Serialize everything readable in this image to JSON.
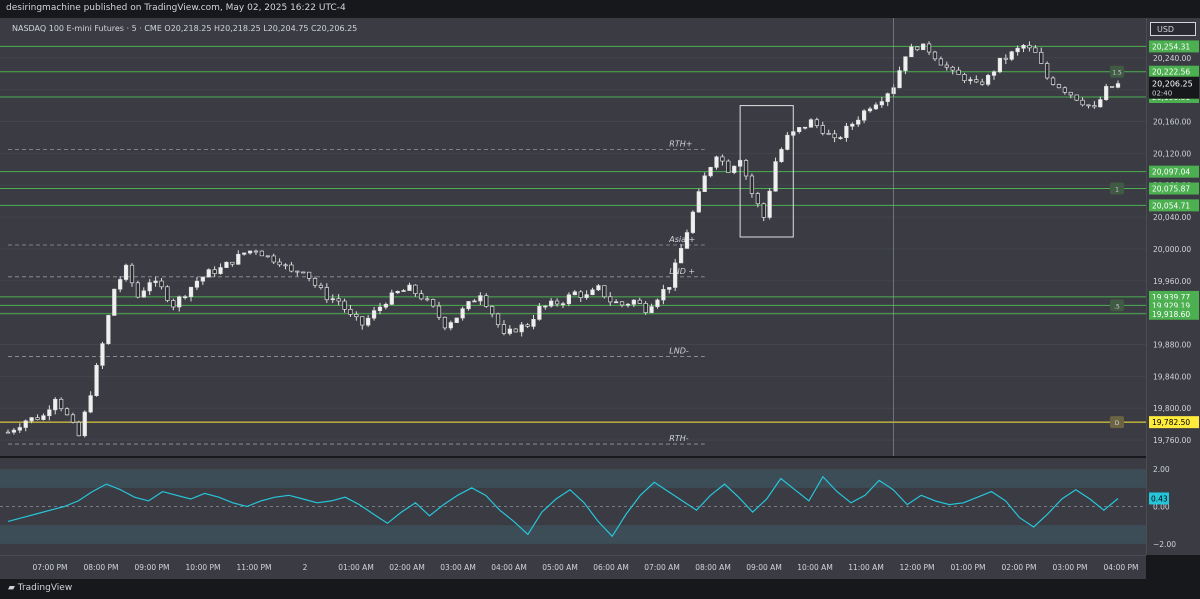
{
  "header": {
    "published_text": "desiringmachine published on TradingView.com, May 02, 2025 16:22 UTC-4"
  },
  "legend": {
    "text": "NASDAQ 100 E-mini Futures · 5 · CME  O20,218.25  H20,218.25  L20,204.75  C20,206.25"
  },
  "currency_button": "USD",
  "footer": {
    "logo_text": "TradingView"
  },
  "colors": {
    "bg": "#3a3b43",
    "green_line": "#4caf50",
    "yellow_line": "#ffeb3b",
    "rsi": "#26c6da",
    "candle": "#e0e0e0"
  },
  "chart_data": {
    "type": "candlestick",
    "instrument": "NASDAQ 100 E-mini Futures",
    "interval": "5",
    "exchange": "CME",
    "ohlc_last": {
      "O": 20218.25,
      "H": 20218.25,
      "L": 20204.75,
      "C": 20206.25
    },
    "ylim": [
      19740,
      20290
    ],
    "price_ticks": [
      20240,
      20200,
      20160,
      20120,
      20080,
      20040,
      20000,
      19960,
      19920,
      19880,
      19840,
      19800,
      19760
    ],
    "price_tick_labels": [
      "20,240.00",
      "20,200.00",
      "20,160.00",
      "20,120.00",
      "20,080.00",
      "20,040.00",
      "20,000.00",
      "19,960.00",
      "19,920.00",
      "19,880.00",
      "19,840.00",
      "19,800.00",
      "19,760.00"
    ],
    "time_labels": [
      "07:00 PM",
      "08:00 PM",
      "09:00 PM",
      "10:00 PM",
      "11:00 PM",
      "2",
      "01:00 AM",
      "02:00 AM",
      "03:00 AM",
      "04:00 AM",
      "05:00 AM",
      "06:00 AM",
      "07:00 AM",
      "08:00 AM",
      "09:00 AM",
      "10:00 AM",
      "11:00 AM",
      "12:00 PM",
      "01:00 PM",
      "02:00 PM",
      "03:00 PM",
      "04:00 PM"
    ],
    "close_path": [
      [
        0,
        19770
      ],
      [
        3,
        19785
      ],
      [
        6,
        19790
      ],
      [
        8,
        19815
      ],
      [
        10,
        19790
      ],
      [
        12,
        19765
      ],
      [
        14,
        19820
      ],
      [
        16,
        19880
      ],
      [
        18,
        19950
      ],
      [
        20,
        19975
      ],
      [
        22,
        19940
      ],
      [
        24,
        19960
      ],
      [
        26,
        19950
      ],
      [
        28,
        19930
      ],
      [
        30,
        19945
      ],
      [
        32,
        19960
      ],
      [
        34,
        19970
      ],
      [
        36,
        19975
      ],
      [
        38,
        19985
      ],
      [
        40,
        19995
      ],
      [
        42,
        20000
      ],
      [
        44,
        19990
      ],
      [
        46,
        19985
      ],
      [
        48,
        19970
      ],
      [
        50,
        19975
      ],
      [
        52,
        19955
      ],
      [
        54,
        19940
      ],
      [
        56,
        19935
      ],
      [
        58,
        19915
      ],
      [
        60,
        19905
      ],
      [
        62,
        19920
      ],
      [
        64,
        19935
      ],
      [
        66,
        19945
      ],
      [
        68,
        19950
      ],
      [
        70,
        19940
      ],
      [
        72,
        19925
      ],
      [
        74,
        19905
      ],
      [
        76,
        19915
      ],
      [
        78,
        19930
      ],
      [
        80,
        19945
      ],
      [
        82,
        19920
      ],
      [
        84,
        19890
      ],
      [
        86,
        19900
      ],
      [
        88,
        19905
      ],
      [
        90,
        19925
      ],
      [
        92,
        19930
      ],
      [
        94,
        19935
      ],
      [
        96,
        19945
      ],
      [
        98,
        19940
      ],
      [
        100,
        19950
      ],
      [
        102,
        19935
      ],
      [
        104,
        19930
      ],
      [
        106,
        19935
      ],
      [
        108,
        19925
      ],
      [
        110,
        19940
      ],
      [
        112,
        19955
      ],
      [
        114,
        20000
      ],
      [
        116,
        20045
      ],
      [
        118,
        20090
      ],
      [
        120,
        20120
      ],
      [
        122,
        20100
      ],
      [
        124,
        20115
      ],
      [
        126,
        20070
      ],
      [
        128,
        20040
      ],
      [
        130,
        20110
      ],
      [
        132,
        20140
      ],
      [
        134,
        20150
      ],
      [
        136,
        20160
      ],
      [
        138,
        20150
      ],
      [
        140,
        20135
      ],
      [
        142,
        20150
      ],
      [
        144,
        20165
      ],
      [
        146,
        20180
      ],
      [
        148,
        20190
      ],
      [
        150,
        20205
      ],
      [
        152,
        20245
      ],
      [
        154,
        20255
      ],
      [
        156,
        20250
      ],
      [
        158,
        20235
      ],
      [
        160,
        20220
      ],
      [
        162,
        20215
      ],
      [
        164,
        20205
      ],
      [
        166,
        20215
      ],
      [
        168,
        20235
      ],
      [
        170,
        20245
      ],
      [
        172,
        20255
      ],
      [
        174,
        20245
      ],
      [
        176,
        20215
      ],
      [
        178,
        20205
      ],
      [
        180,
        20195
      ],
      [
        182,
        20185
      ],
      [
        184,
        20175
      ],
      [
        186,
        20200
      ],
      [
        188,
        20206.25
      ]
    ],
    "n_bars": 188,
    "horizontal_levels": [
      {
        "price": 20254.31,
        "label": "20,254.31",
        "color": "#4caf50"
      },
      {
        "price": 20222.56,
        "label": "20,222.56",
        "color": "#4caf50",
        "tag": "1.5"
      },
      {
        "price": 20190.81,
        "label": "20,190.81",
        "color": "#4caf50"
      },
      {
        "price": 20097.04,
        "label": "20,097.04",
        "color": "#4caf50"
      },
      {
        "price": 20075.87,
        "label": "20,075.87",
        "color": "#4caf50",
        "tag": "1"
      },
      {
        "price": 20054.71,
        "label": "20,054.71",
        "color": "#4caf50"
      },
      {
        "price": 19939.77,
        "label": "19,939.77",
        "color": "#4caf50"
      },
      {
        "price": 19929.19,
        "label": "19,929.19",
        "color": "#4caf50",
        "tag": ".5"
      },
      {
        "price": 19918.6,
        "label": "19,918.60",
        "color": "#4caf50"
      },
      {
        "price": 19782.5,
        "label": "19,782.50",
        "color": "#ffeb3b",
        "tag": "D"
      }
    ],
    "last_price": {
      "value": "20,206.25",
      "countdown": "02:40"
    },
    "session_levels": [
      {
        "name": "RTH+",
        "price": 20125
      },
      {
        "name": "Asia +",
        "price": 20005
      },
      {
        "name": "LND +",
        "price": 19965
      },
      {
        "name": "LND-",
        "price": 19865
      },
      {
        "name": "RTH-",
        "price": 19755
      }
    ],
    "indicator": {
      "name": "oscillator",
      "ylim": [
        -2.6,
        2.6
      ],
      "ticks": [
        2.0,
        0.0,
        -2.0
      ],
      "tick_labels": [
        "2.00",
        "0.00",
        "−2.00"
      ],
      "current_value": "0.43",
      "values": [
        -0.8,
        -0.6,
        -0.4,
        -0.2,
        0.0,
        0.3,
        0.8,
        1.2,
        0.9,
        0.5,
        0.3,
        0.8,
        0.6,
        0.4,
        0.7,
        0.5,
        0.2,
        0.0,
        0.3,
        0.5,
        0.6,
        0.4,
        0.2,
        0.3,
        0.5,
        0.1,
        -0.4,
        -0.9,
        -0.3,
        0.2,
        -0.5,
        0.1,
        0.6,
        1.0,
        0.6,
        -0.2,
        -0.8,
        -1.5,
        -0.3,
        0.4,
        0.9,
        0.2,
        -0.8,
        -1.6,
        -0.4,
        0.6,
        1.3,
        0.8,
        0.3,
        -0.2,
        0.6,
        1.2,
        0.5,
        -0.3,
        0.4,
        1.5,
        0.9,
        0.3,
        1.6,
        0.8,
        0.2,
        0.6,
        1.4,
        0.9,
        0.1,
        0.6,
        0.3,
        0.1,
        0.2,
        0.5,
        0.8,
        0.3,
        -0.6,
        -1.1,
        -0.4,
        0.4,
        0.9,
        0.4,
        -0.2,
        0.43
      ]
    }
  }
}
